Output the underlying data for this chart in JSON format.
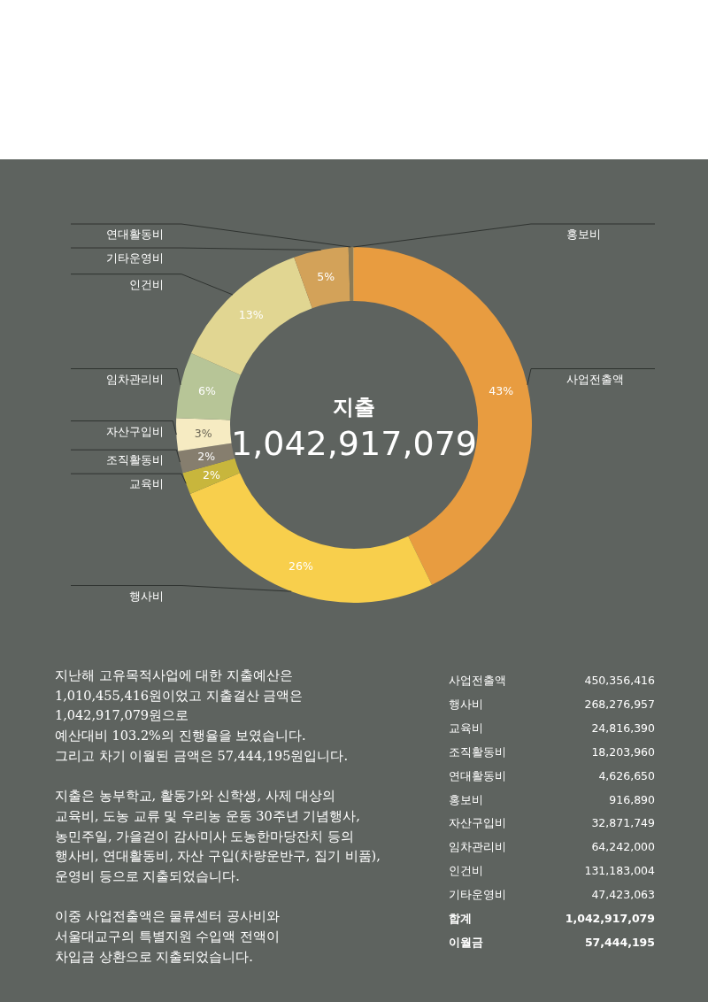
{
  "chart_data": [
    {
      "type": "donut",
      "title": "지출",
      "subtitle": "1,042,917,079",
      "categories": [
        "사업전출액",
        "행사비",
        "교육비",
        "조직활동비",
        "자산구입비",
        "임차관리비",
        "인건비",
        "기타운영비",
        "연대활동비",
        "홍보비"
      ],
      "values": [
        43,
        26,
        2,
        2,
        3,
        6,
        13,
        5,
        0.4,
        0.1
      ],
      "value_labels": [
        "43%",
        "26%",
        "2%",
        "2%",
        "3%",
        "6%",
        "13%",
        "5%",
        null,
        null
      ],
      "colors": [
        "#e89c40",
        "#f8cf4c",
        "#c8b63c",
        "#867e6e",
        "#f6ebc2",
        "#b7c597",
        "#e1d692",
        "#d3a259",
        "#8c7a55",
        "#c9a060"
      ]
    },
    {
      "type": "other",
      "categories": [
        "사업전출액",
        "행사비",
        "교육비",
        "조직활동비",
        "연대활동비",
        "홍보비",
        "자산구입비",
        "임차관리비",
        "인건비",
        "기타운영비",
        "합계",
        "이월금"
      ],
      "value_labels": [
        "450,356,416",
        "268,276,957",
        "24,816,390",
        "18,203,960",
        "4,626,650",
        "916,890",
        "32,871,749",
        "64,242,000",
        "131,183,004",
        "47,423,063",
        "1,042,917,079",
        "57,444,195"
      ],
      "annotations": [
        "지난해 고유목적사업에 대한 지출예산은\n1,010,455,416원이었고 지출결산 금액은\n1,042,917,079원으로\n예산대비 103.2%의 진행율을 보였습니다.\n그리고 차기 이월된 금액은 57,444,195원입니다.",
        "지출은 농부학교, 활동가와 신학생, 사제 대상의\n교육비, 도농 교류 및 우리농 운동 30주년 기념행사,\n농민주일, 가을걷이 감사미사 도농한마당잔치 등의\n행사비, 연대활동비, 자산 구입(차량운반구, 집기 비품),\n운영비 등으로 지출되었습니다.",
        "이중 사업전출액은 물류센터 공사비와\n서울대교구의 특별지원 수입액 전액이\n차입금 상환으로 지출되었습니다."
      ]
    }
  ]
}
